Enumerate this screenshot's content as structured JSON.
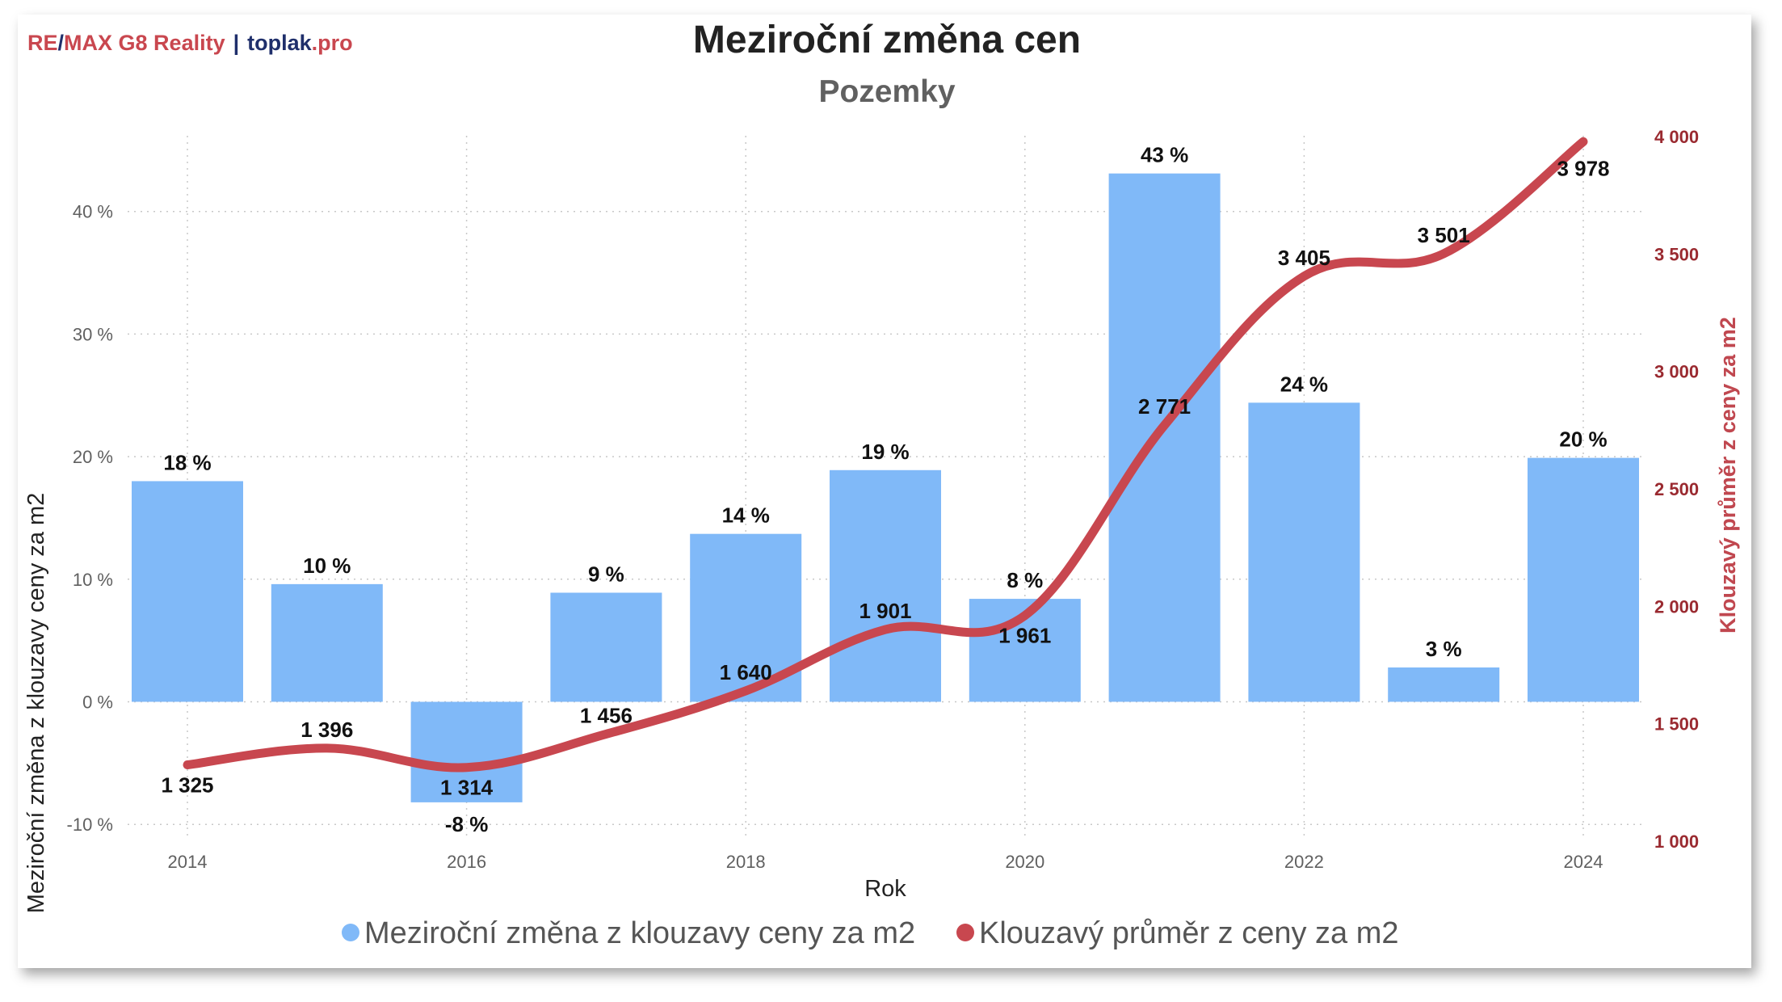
{
  "brand": {
    "part1": "RE",
    "slash": "/",
    "part2": "MAX G8 Reality",
    "separator": "|",
    "site_name": "toplak",
    "site_tld": ".pro"
  },
  "header": {
    "title": "Meziroční změna cen",
    "subtitle": "Pozemky"
  },
  "colors": {
    "bars": "#80b9f8",
    "line": "#c8474f",
    "right_axis": "#9a2a30"
  },
  "chart_data": {
    "type": "bar",
    "title": "Meziroční změna cen",
    "subtitle": "Pozemky",
    "xlabel": "Rok",
    "ylabel": "Meziroční změna z klouzavy ceny za m2",
    "y2label": "Klouzavý průměr z ceny za m2",
    "categories": [
      "2014",
      "2015",
      "2016",
      "2017",
      "2018",
      "2019",
      "2020",
      "2021",
      "2022",
      "2023",
      "2024"
    ],
    "x_tick_labels": [
      "2014",
      "2016",
      "2018",
      "2020",
      "2022",
      "2024"
    ],
    "x_tick_years": [
      2014,
      2016,
      2018,
      2020,
      2022,
      2024
    ],
    "ylim": [
      -10,
      45
    ],
    "y_ticks": [
      -10,
      0,
      10,
      20,
      30,
      40
    ],
    "y_tick_labels": [
      "-10 %",
      "0 %",
      "10 %",
      "20 %",
      "30 %",
      "40 %"
    ],
    "y2lim": [
      1000,
      4000
    ],
    "y2_ticks": [
      1000,
      1500,
      2000,
      2500,
      3000,
      3500,
      4000
    ],
    "y2_tick_labels": [
      "1 000",
      "1 500",
      "2 000",
      "2 500",
      "3 000",
      "3 500",
      "4 000"
    ],
    "grid": true,
    "legend_position": "bottom",
    "series": [
      {
        "name": "Meziroční změna z klouzavy ceny za m2",
        "type": "bar",
        "axis": "left",
        "values": [
          18,
          9.6,
          -8.2,
          8.9,
          13.7,
          18.9,
          8.4,
          43.1,
          24.4,
          2.8,
          19.9
        ],
        "labels": [
          "18 %",
          "10 %",
          "-8 %",
          "9 %",
          "14 %",
          "19 %",
          "8 %",
          "43 %",
          "24 %",
          "3 %",
          "20 %"
        ]
      },
      {
        "name": "Klouzavý průměr z ceny za m2",
        "type": "line",
        "axis": "right",
        "values": [
          1325,
          1396,
          1314,
          1456,
          1640,
          1901,
          1961,
          2771,
          3405,
          3501,
          3978
        ],
        "labels": [
          "1 325",
          "1 396",
          "1 314",
          "1 456",
          "1 640",
          "1 901",
          "1 961",
          "2 771",
          "3 405",
          "3 501",
          "3 978"
        ]
      }
    ]
  }
}
